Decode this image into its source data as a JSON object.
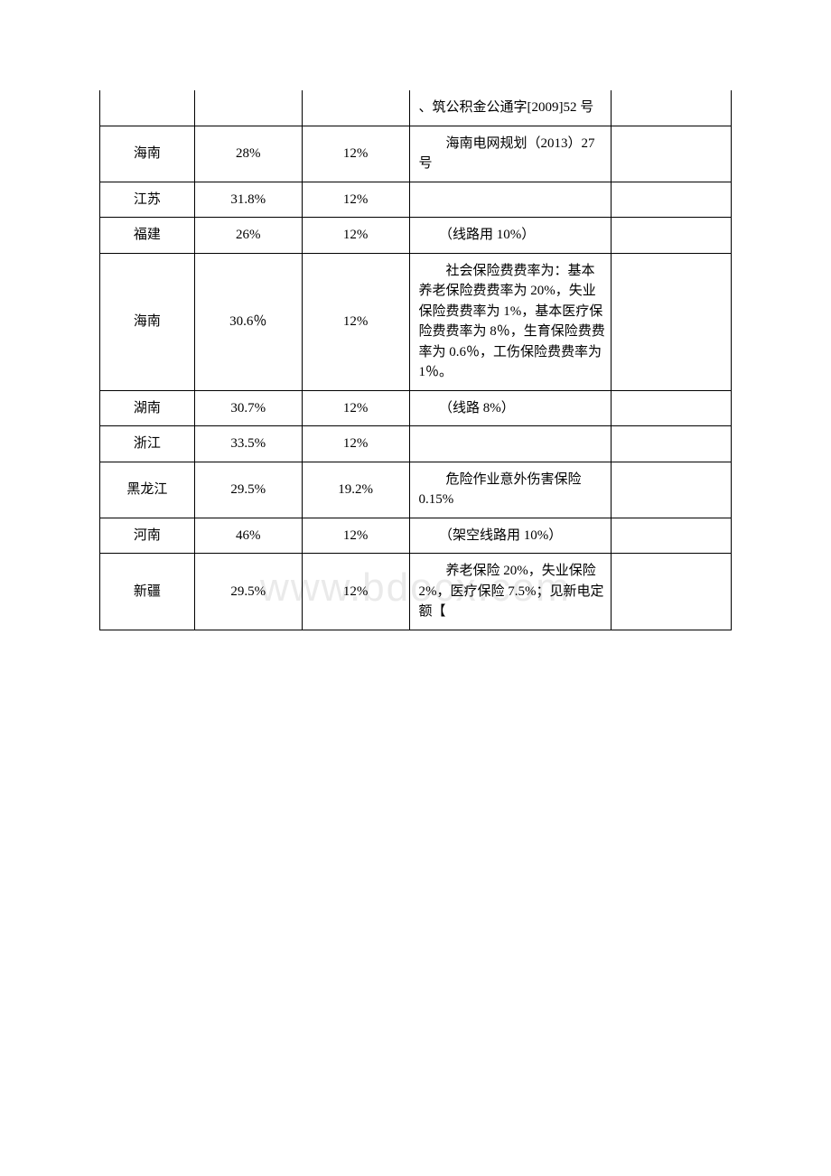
{
  "watermark": "www.bdocx.com",
  "table": {
    "columns": [
      "col1",
      "col2",
      "col3",
      "col4",
      "col5"
    ],
    "rows": [
      {
        "province": "",
        "rate1": "",
        "rate2": "",
        "note": "、筑公积金公通字[2009]52 号",
        "last": "",
        "noTopBorder": true
      },
      {
        "province": "海南",
        "rate1": "28%",
        "rate2": "12%",
        "note": "　　海南电网规划（2013）27 号",
        "last": ""
      },
      {
        "province": "江苏",
        "rate1": "31.8%",
        "rate2": "12%",
        "note": "",
        "last": ""
      },
      {
        "province": "福建",
        "rate1": "26%",
        "rate2": "12%",
        "note": "　　（线路用 10%）",
        "last": ""
      },
      {
        "province": "海南",
        "rate1": "30.6％",
        "rate2": "12%",
        "note": "　　社会保险费费率为：基本养老保险费费率为 20%，失业保险费费率为 1%，基本医疗保险费费率为 8％，生育保险费费率为 0.6％，工伤保险费费率为 1％。",
        "last": ""
      },
      {
        "province": "湖南",
        "rate1": "30.7%",
        "rate2": "12%",
        "note": "　　（线路 8%）",
        "last": ""
      },
      {
        "province": "浙江",
        "rate1": "33.5%",
        "rate2": "12%",
        "note": "",
        "last": ""
      },
      {
        "province": "黑龙江",
        "rate1": "29.5%",
        "rate2": "19.2%",
        "note": "　　危险作业意外伤害保险 0.15%",
        "last": ""
      },
      {
        "province": "河南",
        "rate1": "46%",
        "rate2": "12%",
        "note": "　　（架空线路用 10%）",
        "last": ""
      },
      {
        "province": "新疆",
        "rate1": "29.5%",
        "rate2": "12%",
        "note": "　　养老保险 20%，失业保险 2%，医疗保险 7.5%；见新电定额【",
        "last": ""
      }
    ]
  }
}
